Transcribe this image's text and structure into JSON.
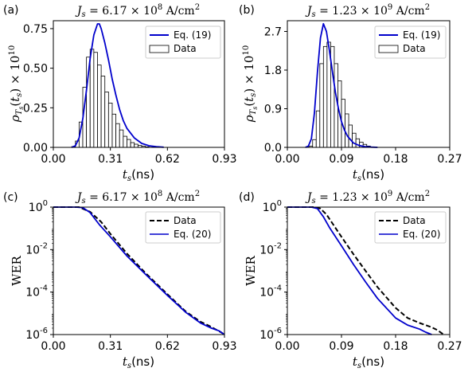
{
  "chart_data": [
    {
      "panel": "(a)",
      "type": "bar",
      "title": "J_s = 6.17 × 10^8 A/cm^2",
      "xlabel": "t_s (ns)",
      "ylabel": "ρ_{T_s}(t_s) × 10^10",
      "xlim": [
        0,
        0.93
      ],
      "ylim": [
        0,
        0.8
      ],
      "xticks": [
        "0.00",
        "0.31",
        "0.62",
        "0.93"
      ],
      "yticks": [
        "0.00",
        "0.25",
        "0.50",
        "0.75"
      ],
      "legend": {
        "position": "top-right",
        "entries": [
          "Eq. (19)",
          "Data"
        ]
      },
      "series": [
        {
          "name": "Data",
          "kind": "histogram",
          "bin_edges": [
            0.1,
            0.12,
            0.14,
            0.16,
            0.18,
            0.2,
            0.22,
            0.24,
            0.26,
            0.28,
            0.3,
            0.32,
            0.34,
            0.36,
            0.38,
            0.4,
            0.42,
            0.44,
            0.46,
            0.48,
            0.5,
            0.52
          ],
          "values": [
            0.005,
            0.04,
            0.16,
            0.38,
            0.57,
            0.62,
            0.6,
            0.52,
            0.45,
            0.35,
            0.28,
            0.21,
            0.15,
            0.11,
            0.07,
            0.05,
            0.03,
            0.02,
            0.012,
            0.007,
            0.003
          ]
        },
        {
          "name": "Eq. (19)",
          "kind": "line",
          "color": "#0000cc",
          "x": [
            0.1,
            0.12,
            0.14,
            0.16,
            0.18,
            0.2,
            0.22,
            0.24,
            0.25,
            0.26,
            0.28,
            0.3,
            0.32,
            0.34,
            0.36,
            0.38,
            0.4,
            0.44,
            0.48,
            0.52,
            0.56,
            0.6
          ],
          "y": [
            0.0,
            0.01,
            0.06,
            0.18,
            0.36,
            0.56,
            0.71,
            0.78,
            0.78,
            0.75,
            0.66,
            0.55,
            0.43,
            0.33,
            0.24,
            0.17,
            0.12,
            0.06,
            0.025,
            0.01,
            0.004,
            0.001
          ]
        }
      ]
    },
    {
      "panel": "(b)",
      "type": "bar",
      "title": "J_s = 1.23 × 10^9 A/cm^2",
      "xlabel": "t_s (ns)",
      "ylabel": "ρ_{T_s}(t_s) × 10^10",
      "xlim": [
        0,
        0.27
      ],
      "ylim": [
        0,
        2.95
      ],
      "xticks": [
        "0.00",
        "0.09",
        "0.18",
        "0.27"
      ],
      "yticks": [
        "0.0",
        "0.9",
        "1.8",
        "2.7"
      ],
      "legend": {
        "position": "top-right",
        "entries": [
          "Eq. (19)",
          "Data"
        ]
      },
      "series": [
        {
          "name": "Data",
          "kind": "histogram",
          "bin_edges": [
            0.036,
            0.042,
            0.048,
            0.054,
            0.06,
            0.066,
            0.072,
            0.078,
            0.084,
            0.09,
            0.096,
            0.102,
            0.108,
            0.114,
            0.12,
            0.126,
            0.132,
            0.138
          ],
          "values": [
            0.03,
            0.18,
            0.85,
            1.95,
            2.35,
            2.45,
            2.35,
            1.95,
            1.55,
            1.12,
            0.78,
            0.52,
            0.33,
            0.2,
            0.12,
            0.07,
            0.03
          ]
        },
        {
          "name": "Eq. (19)",
          "kind": "line",
          "color": "#0000cc",
          "x": [
            0.03,
            0.035,
            0.04,
            0.045,
            0.05,
            0.055,
            0.06,
            0.065,
            0.07,
            0.075,
            0.08,
            0.085,
            0.09,
            0.095,
            0.1,
            0.11,
            0.12,
            0.13,
            0.14,
            0.15
          ],
          "y": [
            0.0,
            0.03,
            0.2,
            0.8,
            1.75,
            2.55,
            2.88,
            2.7,
            2.25,
            1.75,
            1.28,
            0.9,
            0.6,
            0.4,
            0.26,
            0.1,
            0.04,
            0.015,
            0.005,
            0.0
          ]
        }
      ]
    },
    {
      "panel": "(c)",
      "type": "line",
      "title": "J_s = 6.17 × 10^8 A/cm^2",
      "xlabel": "t_s (ns)",
      "ylabel": "WER",
      "yscale": "log",
      "xlim": [
        0,
        0.93
      ],
      "ylim": [
        1e-06,
        1
      ],
      "xticks": [
        "0.00",
        "0.31",
        "0.62",
        "0.93"
      ],
      "yticks": [
        "10^0",
        "10^-2",
        "10^-4",
        "10^-6"
      ],
      "legend": {
        "position": "top-right",
        "entries": [
          "Data",
          "Eq. (20)"
        ]
      },
      "series": [
        {
          "name": "Data",
          "style": "dashed",
          "color": "#000000",
          "x": [
            0.0,
            0.14,
            0.2,
            0.26,
            0.31,
            0.4,
            0.5,
            0.62,
            0.72,
            0.8,
            0.85,
            0.88,
            0.91,
            0.93
          ],
          "y": [
            1,
            0.999,
            0.6,
            0.2,
            0.055,
            0.0065,
            0.0008,
            8e-05,
            1.2e-05,
            4e-06,
            2.5e-06,
            1.8e-06,
            1.3e-06,
            1e-06
          ]
        },
        {
          "name": "Eq. (20)",
          "style": "solid",
          "color": "#0000cc",
          "x": [
            0.0,
            0.12,
            0.16,
            0.2,
            0.25,
            0.31,
            0.4,
            0.5,
            0.62,
            0.72,
            0.8,
            0.86,
            0.9,
            0.93
          ],
          "y": [
            1,
            0.999,
            0.95,
            0.55,
            0.15,
            0.04,
            0.005,
            0.0007,
            7e-05,
            1.1e-05,
            3.5e-06,
            2e-06,
            1.5e-06,
            1e-06
          ]
        }
      ]
    },
    {
      "panel": "(d)",
      "type": "line",
      "title": "J_s = 1.23 × 10^9 A/cm^2",
      "xlabel": "t_s (ns)",
      "ylabel": "WER",
      "yscale": "log",
      "xlim": [
        0,
        0.27
      ],
      "ylim": [
        1e-06,
        1
      ],
      "xticks": [
        "0.00",
        "0.09",
        "0.18",
        "0.27"
      ],
      "yticks": [
        "10^0",
        "10^-2",
        "10^-4",
        "10^-6"
      ],
      "legend": {
        "position": "top-right",
        "entries": [
          "Data",
          "Eq. (20)"
        ]
      },
      "series": [
        {
          "name": "Data",
          "style": "dashed",
          "color": "#000000",
          "x": [
            0.0,
            0.045,
            0.055,
            0.065,
            0.075,
            0.09,
            0.11,
            0.13,
            0.15,
            0.18,
            0.2,
            0.22,
            0.24,
            0.25,
            0.26
          ],
          "y": [
            1,
            0.999,
            0.85,
            0.45,
            0.17,
            0.04,
            0.006,
            0.001,
            0.00017,
            1.8e-05,
            6e-06,
            3.5e-06,
            2.2e-06,
            1.6e-06,
            1e-06
          ]
        },
        {
          "name": "Eq. (20)",
          "style": "solid",
          "color": "#0000cc",
          "x": [
            0.0,
            0.04,
            0.05,
            0.06,
            0.07,
            0.09,
            0.11,
            0.13,
            0.15,
            0.18,
            0.2,
            0.22,
            0.23,
            0.24
          ],
          "y": [
            1,
            0.999,
            0.85,
            0.35,
            0.11,
            0.015,
            0.002,
            0.0003,
            5e-05,
            6e-06,
            2.8e-06,
            1.8e-06,
            1.3e-06,
            1e-06
          ]
        }
      ]
    }
  ]
}
